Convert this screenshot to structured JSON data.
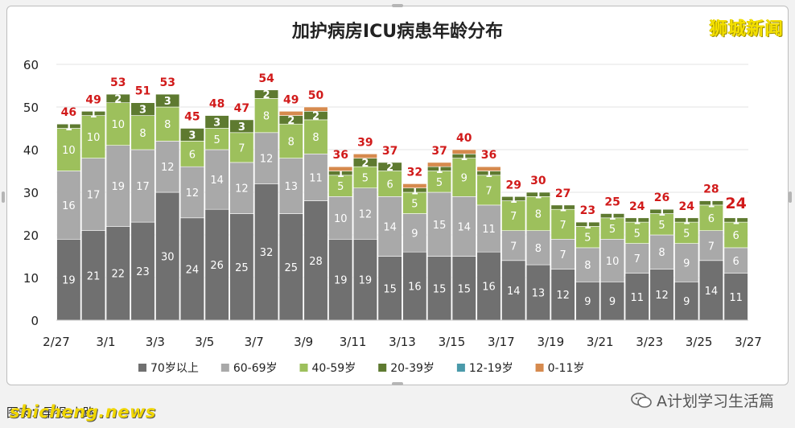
{
  "brand": "狮城新闻",
  "footer": {
    "caption": "图表：早报 小路",
    "watermark": "shicheng.news",
    "wechat_account": "A计划学习生活篇"
  },
  "chart_data": {
    "type": "bar",
    "stacked": true,
    "title": "加护病房ICU病患年龄分布",
    "ylim": [
      0,
      60
    ],
    "yticks": [
      0,
      10,
      20,
      30,
      40,
      50,
      60
    ],
    "grid": true,
    "legend_position": "bottom",
    "x_tick_labels": [
      "2/27",
      "3/1",
      "3/3",
      "3/5",
      "3/7",
      "3/9",
      "3/11",
      "3/13",
      "3/15",
      "3/17",
      "3/19",
      "3/21",
      "3/23",
      "3/25",
      "3/27"
    ],
    "categories": [
      "2/27",
      "2/28",
      "3/1",
      "3/2",
      "3/3",
      "3/4",
      "3/5",
      "3/6",
      "3/7",
      "3/8",
      "3/9",
      "3/10",
      "3/11",
      "3/12",
      "3/13",
      "3/14",
      "3/15",
      "3/16",
      "3/17",
      "3/18",
      "3/19",
      "3/20",
      "3/21",
      "3/22",
      "3/23",
      "3/24",
      "3/25",
      "3/26"
    ],
    "series": [
      {
        "name": "70岁以上",
        "color": "#707070",
        "values": [
          19,
          21,
          22,
          23,
          30,
          24,
          26,
          25,
          32,
          25,
          28,
          19,
          19,
          15,
          16,
          15,
          15,
          16,
          14,
          13,
          12,
          9,
          9,
          11,
          12,
          9,
          14,
          11
        ]
      },
      {
        "name": "60-69岁",
        "color": "#a9a9a9",
        "values": [
          16,
          17,
          19,
          17,
          12,
          12,
          14,
          12,
          12,
          13,
          11,
          10,
          12,
          14,
          9,
          15,
          14,
          11,
          7,
          8,
          7,
          8,
          10,
          7,
          8,
          9,
          7,
          6
        ]
      },
      {
        "name": "40-59岁",
        "color": "#9dc05c",
        "values": [
          10,
          10,
          10,
          8,
          8,
          6,
          5,
          7,
          8,
          8,
          8,
          5,
          5,
          6,
          5,
          5,
          9,
          7,
          7,
          8,
          7,
          5,
          5,
          5,
          5,
          5,
          6,
          6
        ]
      },
      {
        "name": "20-39岁",
        "color": "#5e7a30",
        "values": [
          1,
          1,
          2,
          3,
          3,
          3,
          3,
          3,
          2,
          2,
          2,
          1,
          2,
          2,
          1,
          1,
          1,
          1,
          1,
          1,
          1,
          1,
          1,
          1,
          1,
          1,
          1,
          1
        ]
      },
      {
        "name": "12-19岁",
        "color": "#4a9aaa",
        "values": [
          0,
          0,
          0,
          0,
          0,
          0,
          0,
          0,
          0,
          0,
          0,
          0,
          0,
          0,
          0,
          0,
          0,
          0,
          0,
          0,
          0,
          0,
          0,
          0,
          0,
          0,
          0,
          0
        ]
      },
      {
        "name": "0-11岁",
        "color": "#d68a4e",
        "values": [
          0,
          0,
          0,
          0,
          0,
          0,
          0,
          0,
          0,
          1,
          1,
          1,
          1,
          0,
          1,
          1,
          1,
          1,
          0,
          0,
          0,
          0,
          0,
          0,
          0,
          0,
          0,
          0
        ]
      }
    ],
    "totals": [
      46,
      49,
      53,
      51,
      53,
      45,
      48,
      47,
      54,
      49,
      50,
      36,
      39,
      37,
      32,
      37,
      40,
      36,
      29,
      30,
      27,
      23,
      25,
      24,
      26,
      24,
      28,
      24
    ],
    "total_label_color": "#d11a1a",
    "segment_label_series": [
      "70岁以上",
      "60-69岁",
      "40-59岁",
      "20-39岁"
    ],
    "highlight_last_total": true
  }
}
